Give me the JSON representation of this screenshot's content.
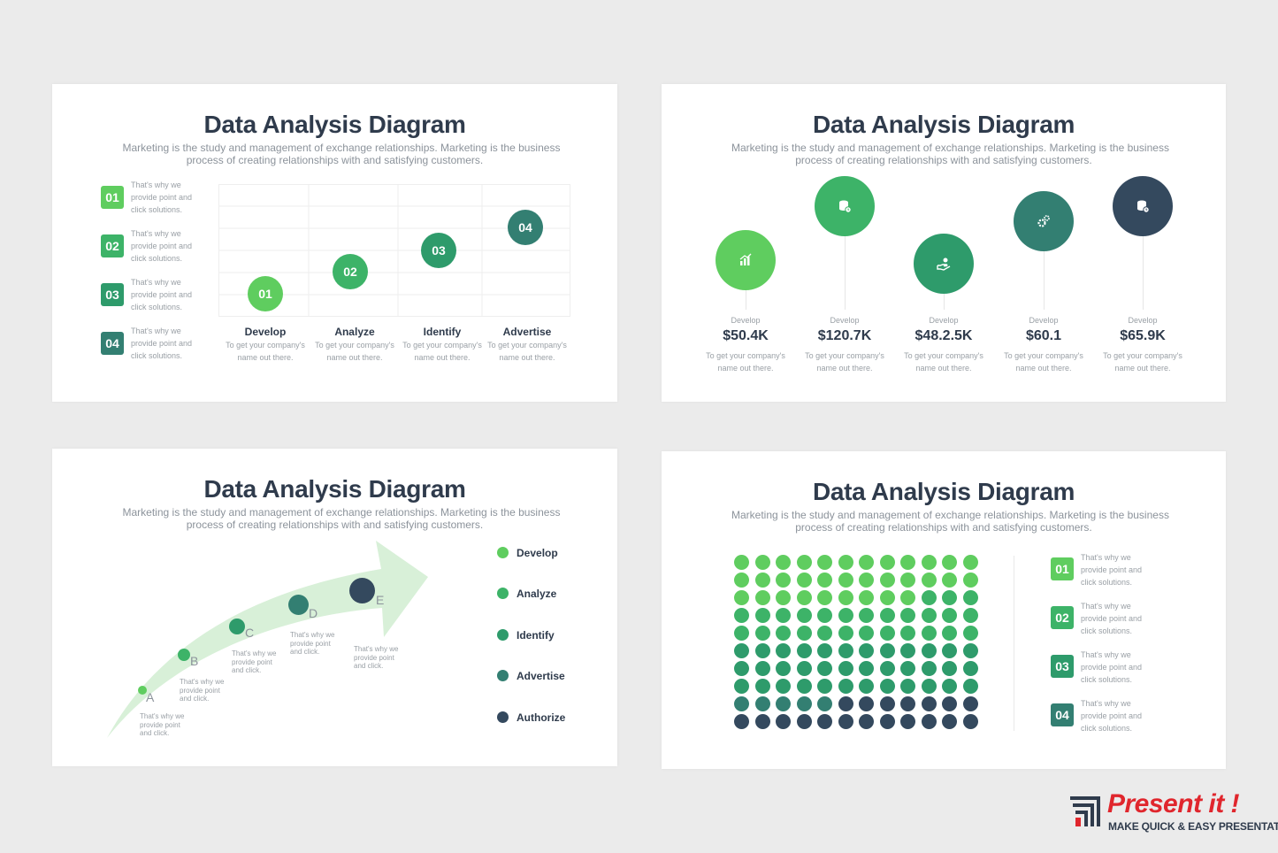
{
  "colors": {
    "c1": "#5fcd5f",
    "c2": "#3db368",
    "c3": "#2e9b6b",
    "c4": "#337f72",
    "c5": "#34495e",
    "arrow": "#d6efd6"
  },
  "slide1": {
    "title": "Data Analysis Diagram",
    "subtitle_line1": "Marketing is the study and management of exchange relationships. Marketing is the business",
    "subtitle_line2": "process of creating relationships with and satisfying customers.",
    "side_items": [
      {
        "num": "01",
        "l1": "That's why we",
        "l2": "provide point and",
        "l3": "click solutions."
      },
      {
        "num": "02",
        "l1": "That's why we",
        "l2": "provide point and",
        "l3": "click solutions."
      },
      {
        "num": "03",
        "l1": "That's why we",
        "l2": "provide point and",
        "l3": "click solutions."
      },
      {
        "num": "04",
        "l1": "That's why we",
        "l2": "provide point and",
        "l3": "click solutions."
      }
    ],
    "columns": [
      {
        "num": "01",
        "label": "Develop",
        "t1": "To get your company's",
        "t2": "name out there."
      },
      {
        "num": "02",
        "label": "Analyze",
        "t1": "To get your company's",
        "t2": "name out there."
      },
      {
        "num": "03",
        "label": "Identify",
        "t1": "To get your company's",
        "t2": "name out there."
      },
      {
        "num": "04",
        "label": "Advertise",
        "t1": "To get your company's",
        "t2": "name out there."
      }
    ]
  },
  "slide2": {
    "title": "Data Analysis Diagram",
    "subtitle_line1": "Marketing is the study and management of exchange relationships. Marketing is the business",
    "subtitle_line2": "process of creating relationships with and satisfying customers.",
    "items": [
      {
        "icon": "bar-chart-icon",
        "caption": "Develop",
        "value": "$50.4K",
        "t1": "To get your company's",
        "t2": "name out there."
      },
      {
        "icon": "database-clock-icon",
        "caption": "Develop",
        "value": "$120.7K",
        "t1": "To get your company's",
        "t2": "name out there."
      },
      {
        "icon": "hand-coin-icon",
        "caption": "Develop",
        "value": "$48.2.5K",
        "t1": "To get your company's",
        "t2": "name out there."
      },
      {
        "icon": "gears-icon",
        "caption": "Develop",
        "value": "$60.1",
        "t1": "To get your company's",
        "t2": "name out there."
      },
      {
        "icon": "database-clock-icon",
        "caption": "Develop",
        "value": "$65.9K",
        "t1": "To get your company's",
        "t2": "name out there."
      }
    ]
  },
  "slide3": {
    "title": "Data Analysis Diagram",
    "subtitle_line1": "Marketing is the study and management of exchange relationships. Marketing is the business",
    "subtitle_line2": "process of creating relationships with and satisfying customers.",
    "points": [
      {
        "letter": "A",
        "l1": "That's why we",
        "l2": "provide point",
        "l3": "and click."
      },
      {
        "letter": "B",
        "l1": "That's why we",
        "l2": "provide point",
        "l3": "and click."
      },
      {
        "letter": "C",
        "l1": "That's why we",
        "l2": "provide point",
        "l3": "and click."
      },
      {
        "letter": "D",
        "l1": "That's why we",
        "l2": "provide point",
        "l3": "and click."
      },
      {
        "letter": "E",
        "l1": "That's why we",
        "l2": "provide point",
        "l3": "and click."
      }
    ],
    "legend": [
      "Develop",
      "Analyze",
      "Identify",
      "Advertise",
      "Authorize"
    ]
  },
  "slide4": {
    "title": "Data Analysis Diagram",
    "subtitle_line1": "Marketing is the study and management of exchange relationships. Marketing is the business",
    "subtitle_line2": "process of creating relationships with and satisfying customers.",
    "waffle_rows": [
      [
        1,
        1,
        1,
        1,
        1,
        1,
        1,
        1,
        1,
        1,
        1,
        1
      ],
      [
        1,
        1,
        1,
        1,
        1,
        1,
        1,
        1,
        1,
        1,
        1,
        1
      ],
      [
        1,
        1,
        1,
        1,
        1,
        1,
        1,
        1,
        1,
        2,
        2,
        2
      ],
      [
        2,
        2,
        2,
        2,
        2,
        2,
        2,
        2,
        2,
        2,
        2,
        2
      ],
      [
        2,
        2,
        2,
        2,
        2,
        2,
        2,
        2,
        2,
        2,
        2,
        2
      ],
      [
        3,
        3,
        3,
        3,
        3,
        3,
        3,
        3,
        3,
        3,
        3,
        3
      ],
      [
        3,
        3,
        3,
        3,
        3,
        3,
        3,
        3,
        3,
        3,
        3,
        3
      ],
      [
        3,
        3,
        3,
        3,
        3,
        3,
        3,
        3,
        3,
        3,
        3,
        3
      ],
      [
        4,
        4,
        4,
        4,
        4,
        5,
        5,
        5,
        5,
        5,
        5,
        5
      ],
      [
        5,
        5,
        5,
        5,
        5,
        5,
        5,
        5,
        5,
        5,
        5,
        5
      ]
    ],
    "side_items": [
      {
        "num": "01",
        "l1": "That's why we",
        "l2": "provide point and",
        "l3": "click solutions."
      },
      {
        "num": "02",
        "l1": "That's why we",
        "l2": "provide point and",
        "l3": "click solutions."
      },
      {
        "num": "03",
        "l1": "That's why we",
        "l2": "provide point and",
        "l3": "click solutions."
      },
      {
        "num": "04",
        "l1": "That's why we",
        "l2": "provide point and",
        "l3": "click solutions."
      }
    ]
  },
  "logo": {
    "brand": "Present it !",
    "tagline": "MAKE QUICK & EASY PRESENTATIONS"
  }
}
